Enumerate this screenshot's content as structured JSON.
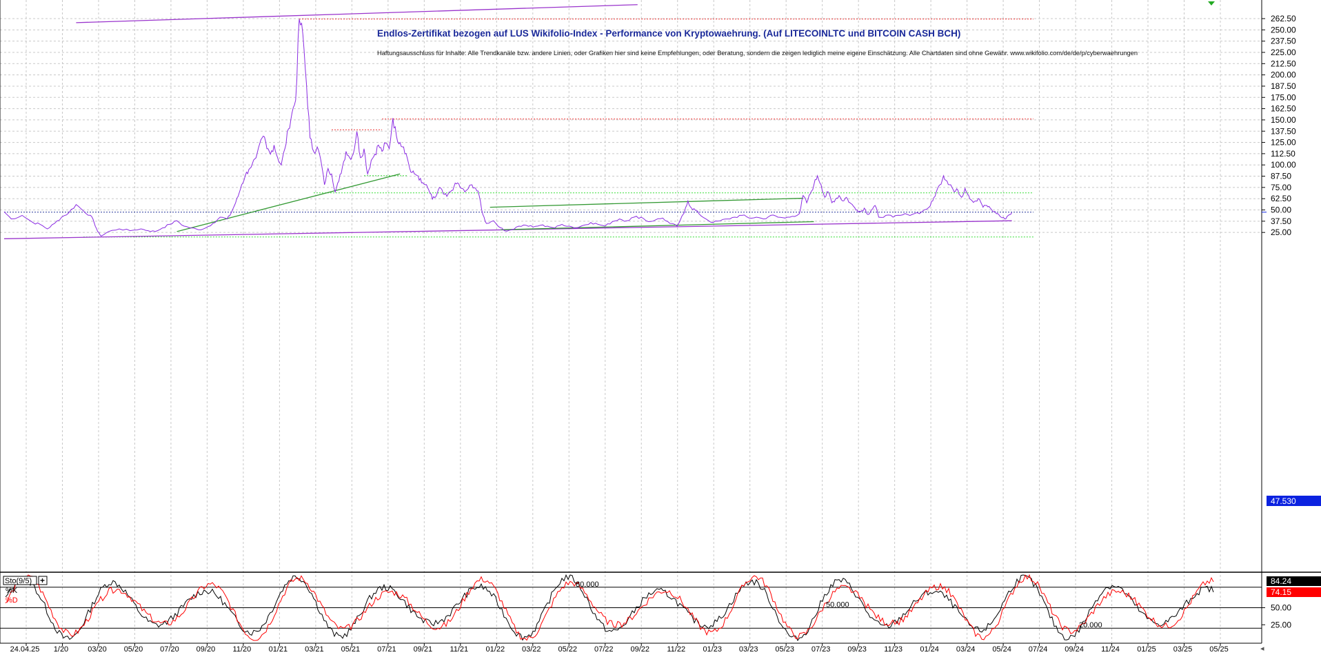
{
  "chart_data": [
    {
      "type": "line",
      "title": "Endlos-Zertifikat bezogen auf LUS Wikifolio-Index - Performance von Kryptowaehrung. (Auf LITECOINLTC und BITCOIN CASH BCH)",
      "subtitle": "Haftungsausschluss für Inhalte: Alle Trendkanäle bzw. andere Linien, oder Grafiken hier sind keine Empfehlungen, oder Beratung, sondern die zeigen lediglich meine eigene Einschätzung. Alle Chartdaten sind ohne Gewähr. www.wikifolio.com/de/de/p/cyberwaehrungen",
      "x_tick_labels": [
        "24.04.25",
        "1/20",
        "03/20",
        "05/20",
        "07/20",
        "09/20",
        "11/20",
        "01/21",
        "03/21",
        "05/21",
        "07/21",
        "09/21",
        "11/21",
        "01/22",
        "03/22",
        "05/22",
        "07/22",
        "09/22",
        "11/22",
        "01/23",
        "03/23",
        "05/23",
        "07/23",
        "09/23",
        "11/23",
        "01/24",
        "03/24",
        "05/24",
        "07/24",
        "09/24",
        "11/24",
        "01/25",
        "03/25",
        "05/25"
      ],
      "y_ticks": [
        "25.00",
        "37.50",
        "50.00",
        "62.50",
        "75.00",
        "87.50",
        "100.00",
        "112.50",
        "125.00",
        "137.50",
        "150.00",
        "162.50",
        "175.00",
        "187.50",
        "200.00",
        "212.50",
        "225.00",
        "237.50",
        "250.00",
        "262.50"
      ],
      "ylim": [
        18,
        265
      ],
      "last_value": "47.530",
      "grid": true,
      "series": [
        {
          "color": "#8a2be2",
          "points": [
            [
              0,
              48
            ],
            [
              2,
              40
            ],
            [
              5,
              44
            ],
            [
              8,
              36
            ],
            [
              10,
              34
            ],
            [
              12,
              29
            ],
            [
              14,
              35
            ],
            [
              16,
              42
            ],
            [
              18,
              47
            ],
            [
              20,
              56
            ],
            [
              22,
              49
            ],
            [
              24,
              44
            ],
            [
              25,
              36
            ],
            [
              26,
              26
            ],
            [
              27,
              21
            ],
            [
              29,
              26
            ],
            [
              32,
              29
            ],
            [
              35,
              27
            ],
            [
              38,
              29
            ],
            [
              40,
              27
            ],
            [
              42,
              26
            ],
            [
              44,
              30
            ],
            [
              46,
              34
            ],
            [
              48,
              38
            ],
            [
              50,
              32
            ],
            [
              52,
              30
            ],
            [
              54,
              28
            ],
            [
              56,
              30
            ],
            [
              58,
              35
            ],
            [
              60,
              42
            ],
            [
              62,
              40
            ],
            [
              63,
              46
            ],
            [
              64,
              55
            ],
            [
              65,
              65
            ],
            [
              66,
              78
            ],
            [
              67,
              88
            ],
            [
              68,
              95
            ],
            [
              70,
              108
            ],
            [
              72,
              132
            ],
            [
              73,
              118
            ],
            [
              74,
              112
            ],
            [
              75,
              122
            ],
            [
              76,
              108
            ],
            [
              77,
              100
            ],
            [
              78,
              118
            ],
            [
              79,
              140
            ],
            [
              80,
              158
            ],
            [
              81,
              172
            ],
            [
              82,
              262
            ],
            [
              83,
              245
            ],
            [
              84,
              190
            ],
            [
              85,
              130
            ],
            [
              86,
              115
            ],
            [
              87,
              120
            ],
            [
              88,
              105
            ],
            [
              89,
              78
            ],
            [
              90,
              96
            ],
            [
              91,
              90
            ],
            [
              92,
              70
            ],
            [
              93,
              82
            ],
            [
              94,
              98
            ],
            [
              95,
              115
            ],
            [
              96,
              108
            ],
            [
              97,
              112
            ],
            [
              98,
              137
            ],
            [
              99,
              108
            ],
            [
              100,
              118
            ],
            [
              101,
              90
            ],
            [
              102,
              105
            ],
            [
              103,
              112
            ],
            [
              104,
              122
            ],
            [
              105,
              115
            ],
            [
              106,
              124
            ],
            [
              107,
              118
            ],
            [
              108,
              152
            ],
            [
              109,
              132
            ],
            [
              110,
              125
            ],
            [
              111,
              120
            ],
            [
              112,
              108
            ],
            [
              113,
              92
            ],
            [
              114,
              90
            ],
            [
              115,
              88
            ],
            [
              116,
              80
            ],
            [
              117,
              78
            ],
            [
              118,
              72
            ],
            [
              119,
              62
            ],
            [
              120,
              65
            ],
            [
              121,
              75
            ],
            [
              122,
              68
            ],
            [
              123,
              65
            ],
            [
              124,
              70
            ],
            [
              125,
              76
            ],
            [
              126,
              80
            ],
            [
              127,
              74
            ],
            [
              128,
              70
            ],
            [
              129,
              74
            ],
            [
              130,
              78
            ],
            [
              131,
              74
            ],
            [
              132,
              66
            ],
            [
              133,
              45
            ],
            [
              134,
              35
            ],
            [
              136,
              38
            ],
            [
              138,
              30
            ],
            [
              139,
              27
            ],
            [
              141,
              28
            ],
            [
              143,
              32
            ],
            [
              145,
              33
            ],
            [
              147,
              31
            ],
            [
              149,
              33
            ],
            [
              151,
              32
            ],
            [
              153,
              30
            ],
            [
              155,
              34
            ],
            [
              157,
              32
            ],
            [
              159,
              30
            ],
            [
              161,
              33
            ],
            [
              163,
              36
            ],
            [
              165,
              34
            ],
            [
              167,
              32
            ],
            [
              169,
              37
            ],
            [
              171,
              40
            ],
            [
              173,
              38
            ],
            [
              175,
              42
            ],
            [
              177,
              42
            ],
            [
              179,
              37
            ],
            [
              181,
              39
            ],
            [
              183,
              41
            ],
            [
              185,
              35
            ],
            [
              187,
              32
            ],
            [
              189,
              47
            ],
            [
              190,
              60
            ],
            [
              191,
              52
            ],
            [
              192,
              50
            ],
            [
              193,
              46
            ],
            [
              195,
              40
            ],
            [
              197,
              36
            ],
            [
              199,
              38
            ],
            [
              201,
              40
            ],
            [
              203,
              42
            ],
            [
              205,
              44
            ],
            [
              207,
              41
            ],
            [
              209,
              42
            ],
            [
              211,
              40
            ],
            [
              213,
              44
            ],
            [
              215,
              42
            ],
            [
              217,
              41
            ],
            [
              219,
              43
            ],
            [
              221,
              46
            ],
            [
              222,
              66
            ],
            [
              223,
              58
            ],
            [
              224,
              68
            ],
            [
              225,
              78
            ],
            [
              226,
              88
            ],
            [
              227,
              78
            ],
            [
              228,
              64
            ],
            [
              229,
              70
            ],
            [
              230,
              58
            ],
            [
              231,
              62
            ],
            [
              232,
              66
            ],
            [
              233,
              60
            ],
            [
              234,
              64
            ],
            [
              235,
              58
            ],
            [
              236,
              54
            ],
            [
              237,
              50
            ],
            [
              238,
              48
            ],
            [
              239,
              52
            ],
            [
              240,
              45
            ],
            [
              241,
              50
            ],
            [
              242,
              55
            ],
            [
              243,
              42
            ],
            [
              245,
              44
            ],
            [
              247,
              42
            ],
            [
              249,
              44
            ],
            [
              251,
              45
            ],
            [
              253,
              46
            ],
            [
              255,
              48
            ],
            [
              257,
              53
            ],
            [
              258,
              60
            ],
            [
              259,
              70
            ],
            [
              260,
              78
            ],
            [
              261,
              88
            ],
            [
              262,
              82
            ],
            [
              263,
              78
            ],
            [
              264,
              70
            ],
            [
              265,
              72
            ],
            [
              266,
              64
            ],
            [
              267,
              74
            ],
            [
              268,
              66
            ],
            [
              269,
              60
            ],
            [
              270,
              60
            ],
            [
              271,
              62
            ],
            [
              272,
              53
            ],
            [
              273,
              55
            ],
            [
              274,
              52
            ],
            [
              275,
              48
            ],
            [
              276,
              46
            ],
            [
              277,
              42
            ],
            [
              278,
              40
            ],
            [
              279,
              44
            ],
            [
              280,
              47
            ]
          ]
        }
      ],
      "trendlines": [
        {
          "color": "#9933cc",
          "points": [
            [
              0,
              18
            ],
            [
              280,
              38
            ]
          ]
        },
        {
          "color": "#9933cc",
          "points": [
            [
              20,
              258
            ],
            [
              176,
              278
            ]
          ]
        },
        {
          "color": "#339933",
          "points": [
            [
              48,
              26
            ],
            [
              110,
              90
            ]
          ]
        },
        {
          "color": "#339933",
          "points": [
            [
              135,
              53
            ],
            [
              222,
              63
            ]
          ]
        },
        {
          "color": "#339933",
          "points": [
            [
              138,
              28
            ],
            [
              225,
              37
            ]
          ]
        }
      ],
      "reference_lines": [
        {
          "color": "#ee3333",
          "y": 262,
          "x_range": [
            82,
            286
          ]
        },
        {
          "color": "#ee3333",
          "y": 151,
          "x_range": [
            105,
            286
          ]
        },
        {
          "color": "#ee3333",
          "y": 139,
          "x_range": [
            91,
            105
          ]
        },
        {
          "color": "#33dd33",
          "y": 69,
          "x_range": [
            86,
            286
          ]
        },
        {
          "color": "#33dd33",
          "y": 88,
          "x_range": [
            100,
            112
          ]
        },
        {
          "color": "#33dd33",
          "y": 20,
          "x_range": [
            22,
            286
          ]
        },
        {
          "color": "#223399",
          "y": 47.53,
          "x_range": [
            0,
            286
          ]
        }
      ]
    },
    {
      "type": "line",
      "indicator": "Sto(9/5)",
      "ylim": [
        0,
        100
      ],
      "y_ticks": [
        "25.00",
        "50.00"
      ],
      "levels": [
        {
          "value": 80,
          "label": "80.000"
        },
        {
          "value": 50,
          "label": "50.000"
        },
        {
          "value": 20,
          "label": "20.000"
        }
      ],
      "series": [
        {
          "name": "%K",
          "color": "#000000",
          "last_value": "84.24"
        },
        {
          "name": "%D",
          "color": "#ff0000",
          "last_value": "74.15"
        }
      ]
    }
  ]
}
